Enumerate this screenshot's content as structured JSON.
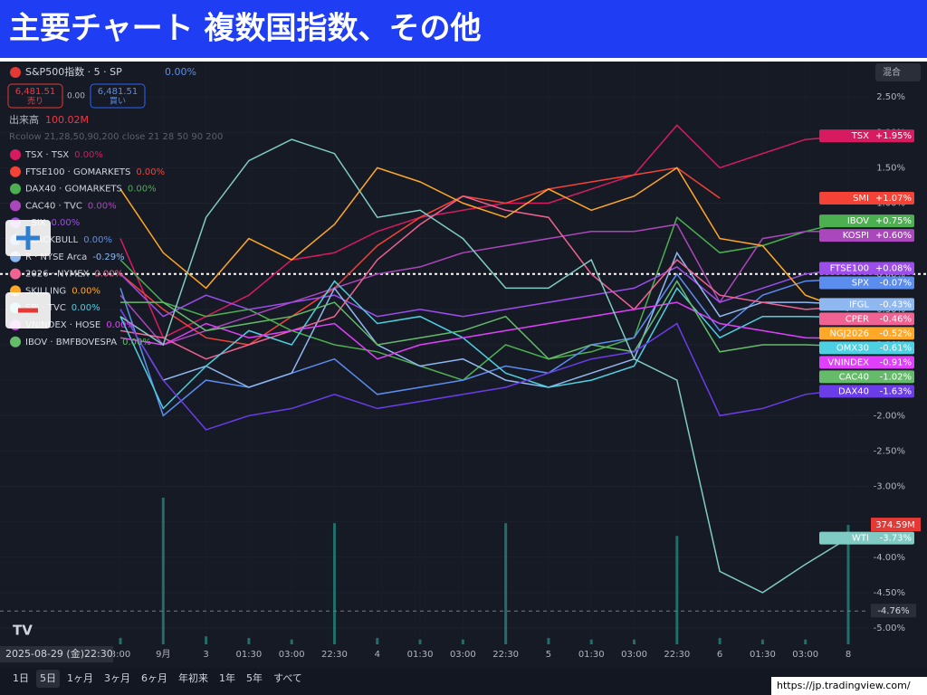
{
  "header": {
    "title": "主要チャート 複数国指数、その他"
  },
  "toolbar": {
    "symbol": "S&P500指数 · 5 · SP",
    "change": "0.00%",
    "sell_price": "6,481.51",
    "sell": "売り",
    "spread": "0.00",
    "buy_price": "6,481.51",
    "buy": "買い",
    "volume_label": "出来高",
    "volume_value": "100.02M",
    "indicator": "Rcolow 21,28,50,90,200 close 21 28 50 90 200",
    "scale_mode": "混合"
  },
  "legend_overlay": [
    "TSX · TSX",
    "0.00%",
    "FTSE100 · GOMARKETS",
    "0.00%",
    "DAX40 · GOMARKETS",
    "0.00%",
    "CAC40 · TVC",
    "0.00%",
    "· SIX",
    "0.00%",
    "BLACKBULL",
    "0.00%",
    "R · NYSE Arca",
    "-0.29%",
    "2026 · NYMEX",
    "0.00%",
    "SKILLING",
    "0.00%",
    "SPI · TVC",
    "0.00%",
    "VNINDEX · HOSE",
    "0.00%",
    "IBOV · BMFBOVESPA",
    "0.00%"
  ],
  "crosshair": {
    "date": "2025-08-29 (金)",
    "time": "22:30"
  },
  "periods": [
    "1日",
    "5日",
    "1ヶ月",
    "3ヶ月",
    "6ヶ月",
    "年初来",
    "1年",
    "5年",
    "すべて"
  ],
  "source": "https://jp.tradingview.com/",
  "chart_data": {
    "type": "line",
    "categories": [
      "3:00",
      "9月",
      "3",
      "01:30",
      "03:00",
      "22:30",
      "4",
      "01:30",
      "03:00",
      "22:30",
      "5",
      "01:30",
      "03:00",
      "22:30",
      "6",
      "01:30",
      "03:00",
      "8"
    ],
    "ylim": [
      -5.23,
      3.0
    ],
    "yticks": [
      {
        "value": 2.5,
        "label": "2.50%"
      },
      {
        "value": 2,
        "label": "2.00%"
      },
      {
        "value": 1.5,
        "label": "1.50%"
      },
      {
        "value": 1,
        "label": "1.00%"
      },
      {
        "value": 0.5,
        "label": "0.50%"
      },
      {
        "value": 0,
        "label": "0.00%"
      },
      {
        "value": -0.5,
        "label": "-0.50%"
      },
      {
        "value": -1,
        "label": "-1.00%"
      },
      {
        "value": -1.5,
        "label": "-1.50%"
      },
      {
        "value": -2,
        "label": "-2.00%"
      },
      {
        "value": -2.5,
        "label": "-2.50%"
      },
      {
        "value": -3,
        "label": "-3.00%"
      },
      {
        "value": -3.5,
        "label": "-3.50%"
      },
      {
        "value": -4,
        "label": "-4.00%"
      },
      {
        "value": -4.5,
        "label": "-4.50%"
      },
      {
        "value": -5,
        "label": "-5.00%"
      }
    ],
    "baseline": 0,
    "price_line": {
      "value": -4.76,
      "label": "-4.76%"
    },
    "series": [
      {
        "name": "TSX",
        "color": "#d81b60",
        "values": [
          0.5,
          -0.9,
          -0.6,
          -0.3,
          0.2,
          0.3,
          0.6,
          0.8,
          0.9,
          1.0,
          1.0,
          1.2,
          1.4,
          2.1,
          1.5,
          1.7,
          1.9,
          1.95
        ],
        "tag": {
          "value": 1.95,
          "label": "+1.95%"
        }
      },
      {
        "name": "SMI",
        "color": "#f44336",
        "values": [
          0.0,
          -0.5,
          -0.9,
          -1.0,
          -0.6,
          -0.2,
          0.4,
          0.8,
          1.1,
          1.0,
          1.2,
          1.3,
          1.4,
          1.5,
          1.07,
          null,
          null,
          null
        ],
        "tag": {
          "value": 1.07,
          "label": "+1.07%"
        }
      },
      {
        "name": "IBOV",
        "color": "#4caf50",
        "values": [
          0.2,
          -0.4,
          -0.6,
          -0.5,
          -0.8,
          -1.0,
          -1.1,
          -1.3,
          -1.5,
          -1.0,
          -1.2,
          -1.1,
          -0.9,
          0.8,
          0.3,
          0.4,
          0.6,
          0.75
        ],
        "tag": {
          "value": 0.75,
          "label": "+0.75%"
        }
      },
      {
        "name": "KOSPI",
        "color": "#ab47bc",
        "values": [
          -0.3,
          -1.0,
          -0.8,
          -0.6,
          -0.4,
          -0.2,
          0.0,
          0.1,
          0.3,
          0.4,
          0.5,
          0.6,
          0.6,
          0.7,
          -0.4,
          0.5,
          0.6,
          0.6
        ],
        "tag": {
          "value": 0.6,
          "label": "+0.60%"
        }
      },
      {
        "name": "FTSE100",
        "color": "#9c4dea",
        "values": [
          0.0,
          -0.6,
          -0.3,
          -0.5,
          -0.4,
          -0.3,
          -0.6,
          -0.5,
          -0.6,
          -0.5,
          -0.4,
          -0.3,
          -0.2,
          0.1,
          -0.4,
          -0.2,
          0.0,
          0.08
        ],
        "tag": {
          "value": 0.08,
          "label": "+0.08%"
        }
      },
      {
        "name": "SPX",
        "color": "#5b8def",
        "values": [
          -0.2,
          -2.0,
          -1.5,
          -1.6,
          -1.4,
          -1.2,
          -1.7,
          -1.6,
          -1.5,
          -1.3,
          -1.4,
          -1.0,
          -0.9,
          0.0,
          -0.8,
          -0.3,
          -0.1,
          -0.07
        ],
        "tag": {
          "value": -0.07,
          "label": "-0.07%"
        }
      },
      {
        "name": "IFGL",
        "color": "#90b8f0",
        "values": [
          -0.5,
          -1.5,
          -1.3,
          -1.6,
          -1.4,
          -0.2,
          -1.0,
          -1.3,
          -1.2,
          -1.5,
          -1.6,
          -1.4,
          -1.2,
          0.3,
          -0.6,
          -0.4,
          -0.4,
          -0.43
        ],
        "tag": {
          "value": -0.43,
          "label": "-0.43%"
        }
      },
      {
        "name": "CPER",
        "color": "#f06292",
        "values": [
          -0.8,
          -0.9,
          -1.2,
          -1.0,
          -0.8,
          -0.6,
          0.2,
          0.7,
          1.1,
          0.9,
          0.8,
          0.0,
          -0.5,
          0.2,
          -0.3,
          -0.4,
          -0.5,
          -0.46
        ],
        "tag": {
          "value": -0.46,
          "label": "-0.46%"
        }
      },
      {
        "name": "NGJ2026",
        "color": "#ffa726",
        "values": [
          1.2,
          0.3,
          -0.2,
          0.5,
          0.2,
          0.7,
          1.5,
          1.3,
          1.0,
          0.8,
          1.2,
          0.9,
          1.1,
          1.5,
          0.5,
          0.4,
          -0.3,
          -0.52
        ],
        "tag": {
          "value": -0.52,
          "label": "-0.52%"
        }
      },
      {
        "name": "OMX30",
        "color": "#4dd0e1",
        "values": [
          -0.6,
          -1.9,
          -1.3,
          -0.8,
          -1.0,
          -0.1,
          -0.7,
          -0.6,
          -0.9,
          -1.4,
          -1.6,
          -1.5,
          -1.3,
          -0.2,
          -0.9,
          -0.6,
          -0.6,
          -0.61
        ],
        "tag": {
          "value": -0.61,
          "label": "-0.61%"
        }
      },
      {
        "name": "VNINDEX",
        "color": "#e040fb",
        "values": [
          -0.9,
          -1.0,
          -0.7,
          -0.9,
          -0.8,
          -0.7,
          -1.2,
          -1.0,
          -0.9,
          -0.8,
          -0.7,
          -0.6,
          -0.5,
          -0.4,
          -0.7,
          -0.8,
          -0.9,
          -0.91
        ],
        "tag": {
          "value": -0.91,
          "label": "-0.91%"
        }
      },
      {
        "name": "CAC40",
        "color": "#66bb6a",
        "values": [
          -0.4,
          -0.4,
          -0.8,
          -0.7,
          -0.6,
          -0.4,
          -1.0,
          -0.9,
          -0.8,
          -0.6,
          -1.2,
          -1.0,
          -1.1,
          -0.1,
          -1.1,
          -1.0,
          -1.0,
          -1.02
        ],
        "tag": {
          "value": -1.02,
          "label": "-1.02%"
        }
      },
      {
        "name": "DAX40",
        "color": "#6a3de8",
        "values": [
          -0.5,
          -1.5,
          -2.2,
          -2.0,
          -1.9,
          -1.7,
          -1.9,
          -1.8,
          -1.7,
          -1.6,
          -1.4,
          -1.2,
          -1.1,
          -0.7,
          -2.0,
          -1.9,
          -1.7,
          -1.63
        ],
        "tag": {
          "value": -1.63,
          "label": "-1.63%"
        }
      },
      {
        "name": "WTI",
        "color": "#80cbc4",
        "values": [
          -0.6,
          -1.0,
          0.8,
          1.6,
          1.9,
          1.7,
          0.8,
          0.9,
          0.5,
          -0.2,
          -0.2,
          0.2,
          -1.2,
          -1.5,
          -4.2,
          -4.5,
          -4.1,
          -3.73
        ],
        "tag": {
          "value": -3.73,
          "label": "-3.73%"
        }
      }
    ],
    "volume": {
      "color": "#26a69a",
      "ylim": [
        0,
        511
      ],
      "values": [
        20,
        460,
        25,
        20,
        15,
        380,
        20,
        15,
        15,
        380,
        20,
        15,
        15,
        340,
        20,
        15,
        15,
        374.59
      ],
      "tag": {
        "value": 374.59,
        "label": "374.59M"
      }
    }
  }
}
